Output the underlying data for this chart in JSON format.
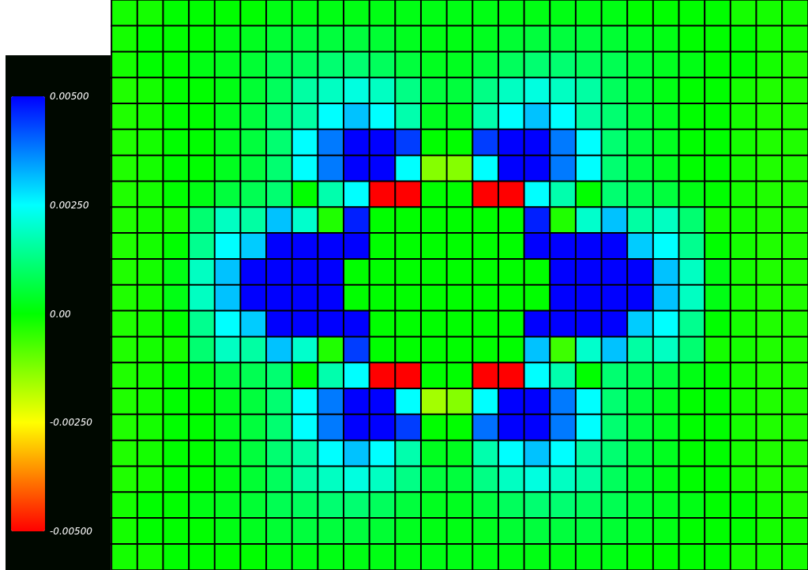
{
  "chart_data": {
    "type": "heatmap",
    "categories": [
      null,
      null,
      null,
      null,
      null,
      null,
      null,
      null,
      null,
      null,
      null,
      null,
      null,
      null,
      null,
      null,
      null,
      null,
      null,
      null,
      null,
      null,
      null,
      null,
      null,
      null,
      null
    ],
    "y_categories": [
      null,
      null,
      null,
      null,
      null,
      null,
      null,
      null,
      null,
      null,
      null,
      null,
      null,
      null,
      null,
      null,
      null,
      null,
      null,
      null,
      null,
      null
    ],
    "cells": [
      [
        -0.0002,
        -0.0002,
        0,
        0,
        0,
        0,
        0.0002,
        0.0002,
        0.0002,
        0.0002,
        0.0002,
        0.0002,
        0.0002,
        0.0002,
        0.0002,
        0.0002,
        0.0002,
        0.0002,
        0.0002,
        0.0002,
        0,
        0,
        0,
        0,
        -0.0002,
        -0.0002,
        -0.0002
      ],
      [
        -0.0002,
        0,
        0,
        0,
        0.0002,
        0.0003,
        0.0005,
        0.0006,
        0.0006,
        0.0006,
        0.0005,
        0.0003,
        0.0002,
        0.0002,
        0.0003,
        0.0005,
        0.0006,
        0.0006,
        0.0006,
        0.0005,
        0.0003,
        0.0002,
        0,
        0,
        0,
        -0.0002,
        -0.0002
      ],
      [
        -0.0002,
        0,
        0,
        0.0002,
        0.0003,
        0.0005,
        0.0008,
        0.0009,
        0.0011,
        0.0011,
        0.0009,
        0.0006,
        0.0003,
        0.0003,
        0.0006,
        0.0009,
        0.0011,
        0.0011,
        0.0009,
        0.0008,
        0.0005,
        0.0003,
        0.0002,
        0,
        0,
        -0.0002,
        -0.0003
      ],
      [
        -0.0003,
        -0.0002,
        0,
        0,
        0.0002,
        0.0005,
        0.0009,
        0.0016,
        0.0019,
        0.0022,
        0.0019,
        0.0013,
        0.0006,
        0.0006,
        0.0013,
        0.0019,
        0.0022,
        0.0019,
        0.0016,
        0.0009,
        0.0005,
        0.0002,
        0,
        0,
        -0.0002,
        -0.0003,
        -0.0003
      ],
      [
        -0.0003,
        -0.0002,
        0,
        0,
        0.0003,
        0.0006,
        0.0011,
        0.0016,
        0.0025,
        0.0031,
        0.0025,
        0.0017,
        0.0003,
        0.0003,
        0.0017,
        0.0025,
        0.0031,
        0.0025,
        0.0016,
        0.0011,
        0.0006,
        0.0003,
        0,
        0,
        -0.0002,
        -0.0003,
        -0.0003
      ],
      [
        -0.0003,
        -0.0002,
        0,
        0,
        0.0003,
        0.0006,
        0.0011,
        0.0025,
        0.0038,
        0.005,
        0.005,
        0.0044,
        0,
        0,
        0.0044,
        0.005,
        0.005,
        0.0038,
        0.0025,
        0.0011,
        0.0006,
        0.0003,
        0,
        0,
        -0.0002,
        -0.0003,
        -0.0003
      ],
      [
        -0.0003,
        -0.0002,
        0,
        0,
        0.0003,
        0.0006,
        0.0011,
        0.0025,
        0.0038,
        0.005,
        0.005,
        0.0025,
        -0.0013,
        -0.0013,
        0.0025,
        0.005,
        0.005,
        0.0038,
        0.0025,
        0.0011,
        0.0006,
        0.0003,
        0,
        0,
        -0.0002,
        -0.0003,
        -0.0003
      ],
      [
        -0.0003,
        -0.0002,
        0,
        0.0002,
        0.0006,
        0.0008,
        0.0011,
        0,
        0.0017,
        0.0025,
        -0.005,
        -0.005,
        0,
        0,
        -0.005,
        -0.005,
        0.0025,
        0.0017,
        0,
        0.0011,
        0.0008,
        0.0006,
        0.0002,
        0,
        -0.0002,
        -0.0003,
        -0.0003
      ],
      [
        -0.0003,
        -0.0002,
        -0.0002,
        0.0011,
        0.0019,
        0.0016,
        0.0031,
        0.002,
        -0.0003,
        0.0047,
        0,
        0,
        0,
        0,
        0,
        0,
        0.0047,
        -0.0003,
        0.002,
        0.0031,
        0.0016,
        0.0019,
        0.0011,
        -0.0002,
        -0.0002,
        -0.0003,
        -0.0003
      ],
      [
        -0.0003,
        -0.0002,
        0,
        0.0014,
        0.0025,
        0.003,
        0.005,
        0.005,
        0.005,
        0.005,
        0,
        0,
        0,
        0,
        0,
        0,
        0.005,
        0.005,
        0.005,
        0.005,
        0.003,
        0.0025,
        0.0014,
        0,
        -0.0002,
        -0.0003,
        -0.0003
      ],
      [
        -0.0003,
        -0.0002,
        0.0002,
        0.0019,
        0.0031,
        0.005,
        0.005,
        0.005,
        0.005,
        0,
        0,
        0,
        0,
        0,
        0,
        0,
        0,
        0.005,
        0.005,
        0.005,
        0.005,
        0.0031,
        0.0019,
        0.0002,
        -0.0002,
        -0.0003,
        -0.0003
      ],
      [
        -0.0003,
        -0.0002,
        0.0002,
        0.0019,
        0.0031,
        0.005,
        0.005,
        0.005,
        0.005,
        0,
        0,
        0,
        0,
        0,
        0,
        0,
        0,
        0.005,
        0.005,
        0.005,
        0.005,
        0.0031,
        0.0019,
        0.0002,
        -0.0002,
        -0.0003,
        -0.0003
      ],
      [
        -0.0003,
        -0.0002,
        0,
        0.0014,
        0.0025,
        0.003,
        0.005,
        0.005,
        0.005,
        0.005,
        0,
        0,
        0,
        0,
        0,
        0,
        0.005,
        0.005,
        0.005,
        0.005,
        0.003,
        0.0025,
        0.0014,
        0,
        -0.0002,
        -0.0003,
        -0.0003
      ],
      [
        -0.0003,
        -0.0002,
        -0.0002,
        0.0011,
        0.0019,
        0.0016,
        0.0031,
        0.002,
        -0.0003,
        0.0044,
        0,
        0,
        0,
        0,
        0,
        0,
        0.0031,
        -0.0006,
        0.002,
        0.0031,
        0.0016,
        0.0019,
        0.0011,
        -0.0002,
        -0.0002,
        -0.0003,
        -0.0003
      ],
      [
        -0.0003,
        -0.0002,
        0,
        0.0002,
        0.0006,
        0.0008,
        0.0011,
        0,
        0.0017,
        0.0025,
        -0.005,
        -0.005,
        0,
        0,
        -0.005,
        -0.005,
        0.0025,
        0.0017,
        0,
        0.0011,
        0.0008,
        0.0006,
        0.0002,
        0,
        -0.0002,
        -0.0003,
        -0.0003
      ],
      [
        -0.0003,
        -0.0002,
        0,
        0,
        0.0003,
        0.0006,
        0.0011,
        0.0025,
        0.0038,
        0.005,
        0.005,
        0.0025,
        -0.0016,
        -0.0013,
        0.0025,
        0.005,
        0.005,
        0.0038,
        0.0025,
        0.0011,
        0.0006,
        0.0003,
        0,
        0,
        -0.0002,
        -0.0003,
        -0.0003
      ],
      [
        -0.0003,
        -0.0002,
        0,
        0,
        0.0003,
        0.0006,
        0.0011,
        0.0025,
        0.0038,
        0.005,
        0.005,
        0.0044,
        0,
        0,
        0.0039,
        0.005,
        0.005,
        0.0038,
        0.0025,
        0.0011,
        0.0006,
        0.0003,
        0,
        0,
        -0.0002,
        -0.0003,
        -0.0003
      ],
      [
        -0.0003,
        -0.0002,
        0,
        0,
        0.0003,
        0.0006,
        0.0011,
        0.0016,
        0.0025,
        0.0031,
        0.0025,
        0.0017,
        0.0003,
        0.0003,
        0.0017,
        0.0025,
        0.0031,
        0.0025,
        0.0016,
        0.0011,
        0.0006,
        0.0003,
        0,
        0,
        -0.0002,
        -0.0003,
        -0.0003
      ],
      [
        -0.0003,
        -0.0002,
        0,
        0,
        0.0002,
        0.0005,
        0.0009,
        0.0016,
        0.0019,
        0.0022,
        0.0019,
        0.0013,
        0.0006,
        0.0006,
        0.0013,
        0.0019,
        0.0022,
        0.0019,
        0.0016,
        0.0009,
        0.0005,
        0.0002,
        0,
        0,
        -0.0002,
        -0.0003,
        -0.0003
      ],
      [
        -0.0002,
        0,
        0,
        0.0002,
        0.0003,
        0.0005,
        0.0008,
        0.0009,
        0.0011,
        0.0011,
        0.0009,
        0.0006,
        0.0003,
        0.0003,
        0.0006,
        0.0009,
        0.0011,
        0.0011,
        0.0009,
        0.0008,
        0.0005,
        0.0003,
        0.0002,
        0,
        0,
        -0.0002,
        -0.0003
      ],
      [
        -0.0002,
        0,
        0,
        0,
        0.0002,
        0.0003,
        0.0005,
        0.0006,
        0.0006,
        0.0006,
        0.0005,
        0.0003,
        0.0002,
        0.0002,
        0.0003,
        0.0005,
        0.0006,
        0.0006,
        0.0006,
        0.0005,
        0.0003,
        0.0002,
        0,
        0,
        0,
        -0.0002,
        -0.0002
      ],
      [
        -0.0002,
        -0.0002,
        0,
        0,
        0,
        0,
        0.0002,
        0.0002,
        0.0002,
        0.0002,
        0.0002,
        0.0002,
        0.0002,
        0.0002,
        0.0002,
        0.0002,
        0.0002,
        0.0002,
        0.0002,
        0.0002,
        0,
        0,
        0,
        0,
        -0.0002,
        -0.0002,
        -0.0002
      ]
    ],
    "clim": [
      -0.005,
      0.005
    ],
    "cticks": [
      {
        "value": 0.005,
        "label": "0.00500"
      },
      {
        "value": 0.0025,
        "label": "0.00250"
      },
      {
        "value": 0,
        "label": "0.00"
      },
      {
        "value": -0.0025,
        "label": "-0.00250"
      },
      {
        "value": -0.005,
        "label": "-0.00500"
      }
    ]
  }
}
